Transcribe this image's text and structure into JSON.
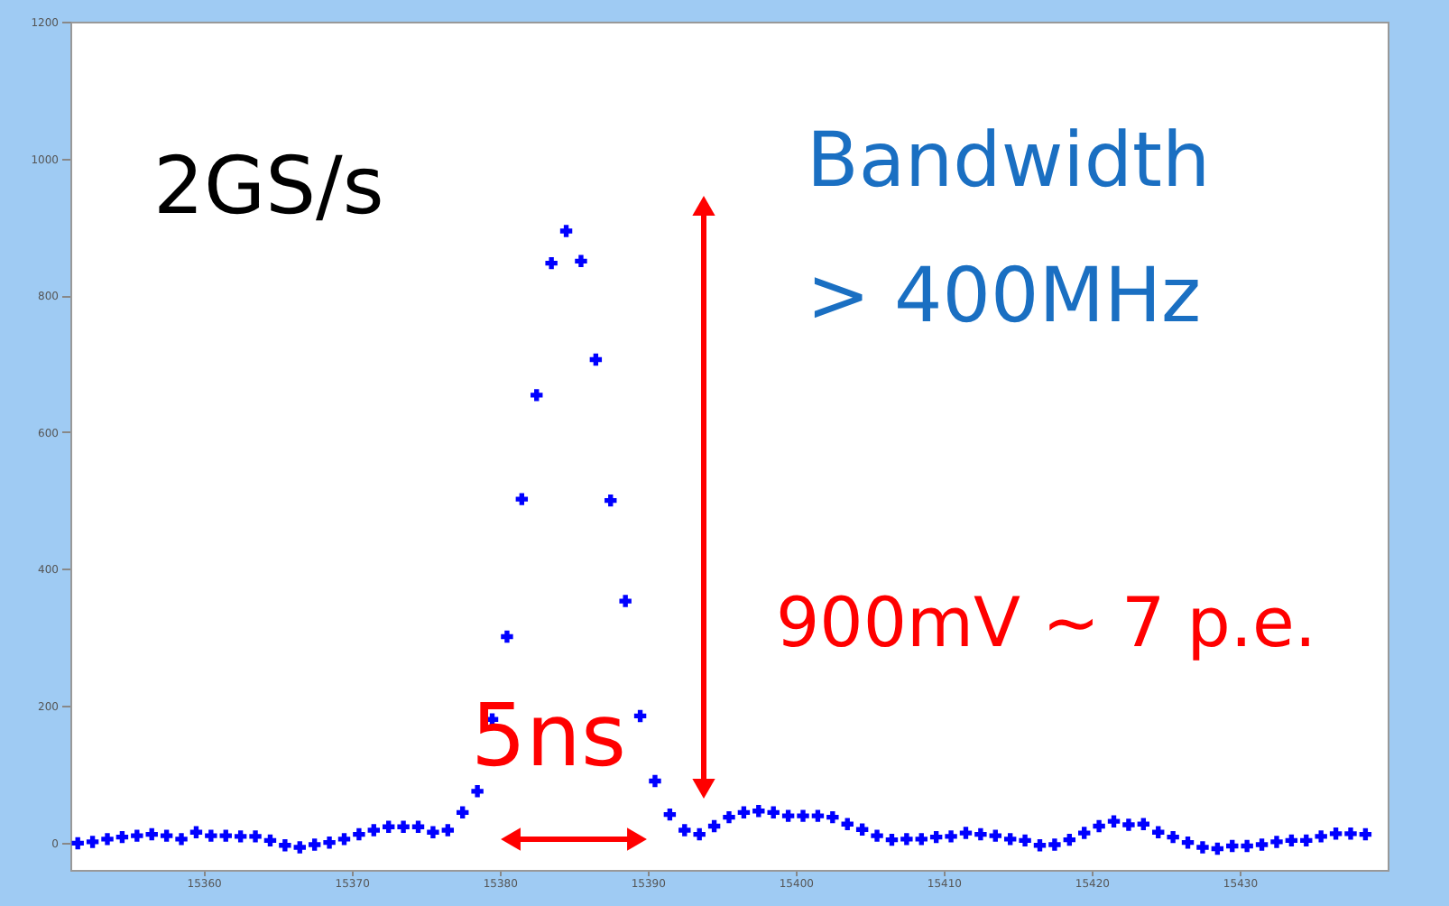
{
  "chart_data": {
    "type": "scatter",
    "marker": "cross",
    "grid": false,
    "x": [
      15351.5,
      15352.5,
      15353.5,
      15354.5,
      15355.5,
      15356.5,
      15357.5,
      15358.5,
      15359.5,
      15360.5,
      15361.5,
      15362.5,
      15363.5,
      15364.5,
      15365.5,
      15366.5,
      15367.5,
      15368.5,
      15369.5,
      15370.5,
      15371.5,
      15372.5,
      15373.5,
      15374.5,
      15375.5,
      15376.5,
      15377.5,
      15378.5,
      15379.5,
      15380.5,
      15381.5,
      15382.5,
      15383.5,
      15384.5,
      15385.5,
      15386.5,
      15387.5,
      15388.5,
      15389.5,
      15390.5,
      15391.5,
      15392.5,
      15393.5,
      15394.5,
      15395.5,
      15396.5,
      15397.5,
      15398.5,
      15399.5,
      15400.5,
      15401.5,
      15402.5,
      15403.5,
      15404.5,
      15405.5,
      15406.5,
      15407.5,
      15408.5,
      15409.5,
      15410.5,
      15411.5,
      15412.5,
      15413.5,
      15414.5,
      15415.5,
      15416.5,
      15417.5,
      15418.5,
      15419.5,
      15420.5,
      15421.5,
      15422.5,
      15423.5,
      15424.5,
      15425.5,
      15426.5,
      15427.5,
      15428.5,
      15429.5,
      15430.5,
      15431.5,
      15432.5,
      15433.5,
      15434.5,
      15435.5,
      15436.5,
      15437.5,
      15438.5
    ],
    "series": [
      {
        "color": "#0000ff",
        "values": [
          -1,
          1,
          5,
          8,
          10,
          12,
          10,
          5,
          15,
          10,
          10,
          9,
          9,
          3,
          -4,
          -7,
          -3,
          0,
          5,
          12,
          18,
          23,
          23,
          23,
          15,
          18,
          44,
          75,
          180,
          301,
          502,
          654,
          847,
          894,
          850,
          706,
          500,
          353,
          185,
          90,
          41,
          18,
          12,
          24,
          37,
          44,
          46,
          44,
          39,
          39,
          39,
          37,
          27,
          19,
          10,
          4,
          5,
          5,
          8,
          9,
          14,
          12,
          10,
          5,
          3,
          -4,
          -3,
          4,
          14,
          24,
          31,
          26,
          27,
          15,
          8,
          0,
          -7,
          -9,
          -5,
          -5,
          -3,
          1,
          3,
          3,
          9,
          13,
          13,
          12
        ]
      }
    ],
    "xlim": [
      15351,
      15440
    ],
    "ylim": [
      -40,
      1200
    ],
    "xticks": [
      15360,
      15370,
      15380,
      15390,
      15400,
      15410,
      15420,
      15430
    ],
    "yticks": [
      0,
      200,
      400,
      600,
      800,
      1000,
      1200
    ],
    "annotations": [
      "2GS/s",
      "Bandwidth",
      "> 400MHz",
      "900mV ~ 7 p.e.",
      "5ns"
    ]
  }
}
